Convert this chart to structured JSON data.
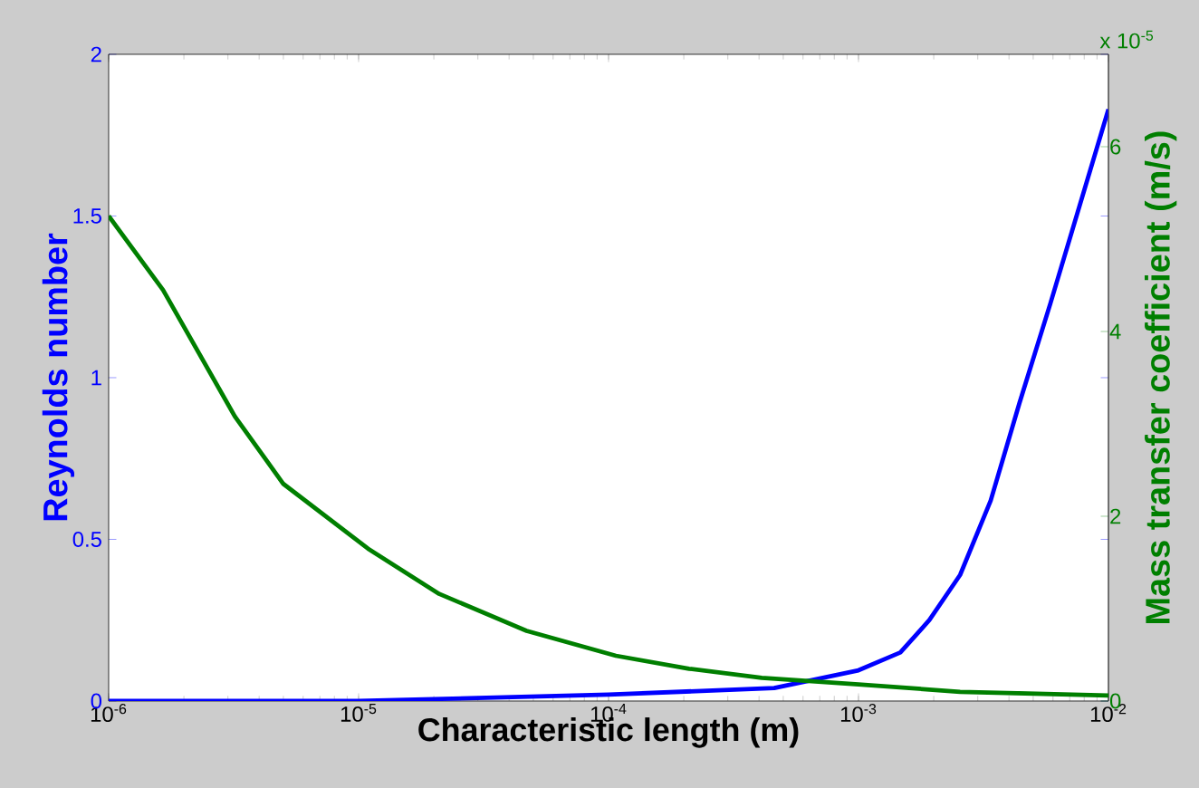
{
  "chart_data": {
    "type": "line",
    "xlabel": "Characteristic length (m)",
    "ylabel": "Reynolds number",
    "y2label": "Mass transfer coefficient (m/s)",
    "log": "x",
    "xlim": [
      1e-06,
      0.01
    ],
    "xticks": [
      {
        "value": 1e-06,
        "label": "10$^{-6}$"
      },
      {
        "value": 1e-05,
        "label": "10$^{-5}$"
      },
      {
        "value": 0.0001,
        "label": "10$^{-4}$"
      },
      {
        "value": 0.001,
        "label": "10$^{-3}$"
      },
      {
        "value": 0.01,
        "label": "10$^{-2}$"
      }
    ],
    "ylim": [
      0,
      2
    ],
    "yticks": [
      0,
      0.5,
      1,
      1.5,
      2
    ],
    "y2lim": [
      0,
      7
    ],
    "y2ticks": [
      0,
      2,
      4,
      6
    ],
    "annotations": [
      "x 10$^{-5}$"
    ],
    "series": [
      {
        "color": "#0000ff",
        "x": [
          1e-06,
          1e-05,
          0.0001,
          0.00046,
          0.001,
          0.00147,
          0.00192,
          0.00255,
          0.00338,
          0.0044,
          0.00586,
          0.01
        ],
        "values": [
          0,
          0,
          0.02,
          0.04,
          0.095,
          0.15,
          0.25,
          0.39,
          0.62,
          0.92,
          1.23,
          1.83
        ]
      },
      {
        "color": "#007f00",
        "axis": "y2",
        "x": [
          1e-06,
          1.65e-06,
          3.2e-06,
          5e-06,
          1.09e-05,
          2.1e-05,
          4.7e-05,
          0.000107,
          0.00021,
          0.00041,
          0.001,
          0.00255,
          0.01
        ],
        "values": [
          5.25,
          4.45,
          3.08,
          2.35,
          1.65,
          1.16,
          0.76,
          0.49,
          0.35,
          0.25,
          0.18,
          0.1,
          0.06
        ]
      }
    ]
  }
}
